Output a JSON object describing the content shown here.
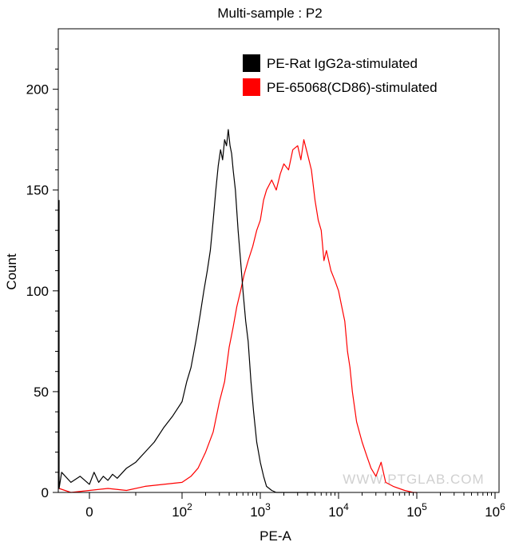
{
  "chart_data": {
    "type": "line",
    "title": "Multi-sample : P2",
    "xlabel": "PE-A",
    "ylabel": "Count",
    "x_scale": "biexponential",
    "xlim": [
      -40,
      1000000
    ],
    "ylim": [
      0,
      230
    ],
    "x_ticks": [
      {
        "value": 0,
        "base": "0",
        "exp": ""
      },
      {
        "value": 100,
        "base": "10",
        "exp": "2"
      },
      {
        "value": 1000,
        "base": "10",
        "exp": "3"
      },
      {
        "value": 10000,
        "base": "10",
        "exp": "4"
      },
      {
        "value": 100000,
        "base": "10",
        "exp": "5"
      },
      {
        "value": 1000000,
        "base": "10",
        "exp": "6"
      }
    ],
    "y_ticks": [
      0,
      50,
      100,
      150,
      200
    ],
    "legend_position": "top-right",
    "series": [
      {
        "name": "PE-Rat IgG2a-stimulated",
        "color": "#000000",
        "points": [
          [
            -40,
            145
          ],
          [
            -38,
            2
          ],
          [
            -30,
            10
          ],
          [
            -20,
            5
          ],
          [
            -10,
            8
          ],
          [
            0,
            4
          ],
          [
            5,
            10
          ],
          [
            10,
            5
          ],
          [
            15,
            8
          ],
          [
            20,
            6
          ],
          [
            25,
            9
          ],
          [
            30,
            7
          ],
          [
            40,
            12
          ],
          [
            50,
            15
          ],
          [
            60,
            20
          ],
          [
            70,
            25
          ],
          [
            80,
            32
          ],
          [
            90,
            38
          ],
          [
            100,
            45
          ],
          [
            115,
            55
          ],
          [
            130,
            62
          ],
          [
            150,
            75
          ],
          [
            170,
            88
          ],
          [
            190,
            100
          ],
          [
            210,
            110
          ],
          [
            230,
            120
          ],
          [
            250,
            135
          ],
          [
            270,
            150
          ],
          [
            290,
            162
          ],
          [
            310,
            170
          ],
          [
            330,
            165
          ],
          [
            350,
            175
          ],
          [
            370,
            172
          ],
          [
            390,
            180
          ],
          [
            410,
            172
          ],
          [
            430,
            168
          ],
          [
            450,
            160
          ],
          [
            480,
            150
          ],
          [
            520,
            130
          ],
          [
            560,
            115
          ],
          [
            600,
            100
          ],
          [
            650,
            85
          ],
          [
            700,
            75
          ],
          [
            760,
            55
          ],
          [
            820,
            40
          ],
          [
            900,
            25
          ],
          [
            1000,
            15
          ],
          [
            1100,
            8
          ],
          [
            1200,
            3
          ],
          [
            1400,
            1
          ],
          [
            1600,
            0
          ],
          [
            2000,
            0
          ],
          [
            5000,
            0
          ]
        ]
      },
      {
        "name": "PE-65068(CD86)-stimulated",
        "color": "#ff0000",
        "points": [
          [
            -40,
            2
          ],
          [
            -20,
            0
          ],
          [
            0,
            1
          ],
          [
            20,
            2
          ],
          [
            40,
            1
          ],
          [
            60,
            3
          ],
          [
            80,
            4
          ],
          [
            100,
            5
          ],
          [
            130,
            8
          ],
          [
            160,
            12
          ],
          [
            200,
            20
          ],
          [
            250,
            30
          ],
          [
            300,
            45
          ],
          [
            350,
            55
          ],
          [
            400,
            72
          ],
          [
            450,
            82
          ],
          [
            500,
            92
          ],
          [
            560,
            100
          ],
          [
            620,
            108
          ],
          [
            700,
            115
          ],
          [
            800,
            122
          ],
          [
            900,
            130
          ],
          [
            1000,
            135
          ],
          [
            1100,
            145
          ],
          [
            1200,
            150
          ],
          [
            1400,
            155
          ],
          [
            1600,
            150
          ],
          [
            1800,
            158
          ],
          [
            2000,
            163
          ],
          [
            2300,
            160
          ],
          [
            2600,
            170
          ],
          [
            3000,
            172
          ],
          [
            3300,
            165
          ],
          [
            3600,
            175
          ],
          [
            4000,
            168
          ],
          [
            4500,
            160
          ],
          [
            5000,
            145
          ],
          [
            5500,
            135
          ],
          [
            6000,
            130
          ],
          [
            6500,
            115
          ],
          [
            7000,
            120
          ],
          [
            8000,
            110
          ],
          [
            9000,
            105
          ],
          [
            10000,
            100
          ],
          [
            11000,
            92
          ],
          [
            12000,
            85
          ],
          [
            13000,
            70
          ],
          [
            14000,
            62
          ],
          [
            15000,
            50
          ],
          [
            17000,
            35
          ],
          [
            20000,
            25
          ],
          [
            23000,
            18
          ],
          [
            26000,
            12
          ],
          [
            30000,
            8
          ],
          [
            35000,
            15
          ],
          [
            40000,
            5
          ],
          [
            50000,
            3
          ],
          [
            70000,
            1
          ],
          [
            90000,
            0
          ],
          [
            100000,
            0
          ]
        ]
      }
    ]
  },
  "watermark": "WWW.PTGLAB.COM"
}
